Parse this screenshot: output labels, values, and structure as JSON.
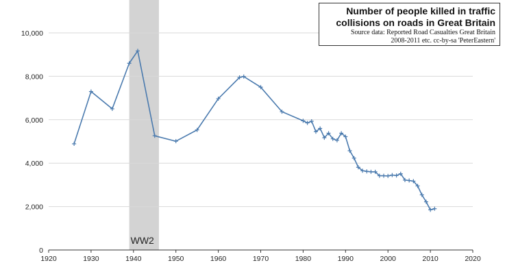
{
  "chart_data": {
    "type": "line",
    "title": "Number of people killed in traffic collisions on roads in Great Britain",
    "title_lines": [
      "Number of people killed in traffic",
      "collisions on roads in Great Britain"
    ],
    "subtitle_lines": [
      "Source data: Reported Road Casualties Great Britain",
      "2008-2011 etc.  cc-by-sa 'PeterEastern'"
    ],
    "xlim": [
      1920,
      2020
    ],
    "ylim": [
      0,
      10000
    ],
    "x_ticks": [
      1920,
      1930,
      1940,
      1950,
      1960,
      1970,
      1980,
      1990,
      2000,
      2010,
      2020
    ],
    "y_ticks": [
      0,
      2000,
      4000,
      6000,
      8000,
      10000
    ],
    "y_tick_labels": [
      "0",
      "2,000",
      "4,000",
      "6,000",
      "8,000",
      "10,000"
    ],
    "grid": true,
    "line_color": "#4A7AAE",
    "shaded_region": {
      "x_start": 1939,
      "x_end": 1946,
      "label": "WW2",
      "color": "#d3d3d3"
    },
    "series": [
      {
        "x": [
          1926,
          1930,
          1935,
          1939,
          1941,
          1945,
          1950,
          1955,
          1960,
          1965,
          1966,
          1970,
          1975,
          1980,
          1981,
          1982,
          1983,
          1984,
          1985,
          1986,
          1987,
          1988,
          1989,
          1990,
          1991,
          1992,
          1993,
          1994,
          1995,
          1996,
          1997,
          1998,
          1999,
          2000,
          2001,
          2002,
          2003,
          2004,
          2005,
          2006,
          2007,
          2008,
          2009,
          2010,
          2011
        ],
        "y": [
          4890,
          7300,
          6500,
          8600,
          9170,
          5260,
          5010,
          5530,
          6970,
          7950,
          7990,
          7500,
          6370,
          5950,
          5850,
          5930,
          5450,
          5600,
          5170,
          5380,
          5120,
          5050,
          5380,
          5220,
          4570,
          4230,
          3810,
          3650,
          3620,
          3600,
          3600,
          3420,
          3420,
          3410,
          3450,
          3430,
          3510,
          3220,
          3200,
          3170,
          2950,
          2540,
          2220,
          1850,
          1900
        ]
      }
    ]
  }
}
